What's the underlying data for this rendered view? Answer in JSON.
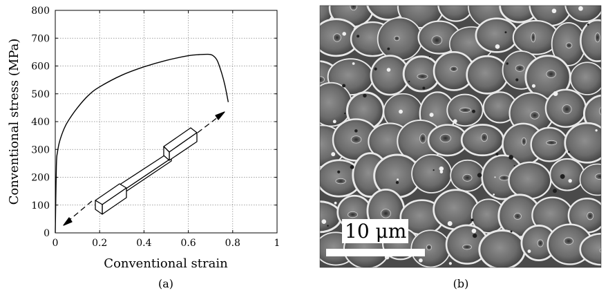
{
  "chart_data": {
    "type": "line",
    "title": "",
    "xlabel": "Conventional strain",
    "ylabel": "Conventional stress (MPa)",
    "xlim": [
      0,
      1
    ],
    "ylim": [
      0,
      800
    ],
    "xticks": [
      0,
      0.2,
      0.4,
      0.6,
      0.8,
      1
    ],
    "xtick_labels": [
      "0",
      "0.2",
      "0.4",
      "0.6",
      "0.8",
      "1"
    ],
    "yticks": [
      0,
      100,
      200,
      300,
      400,
      500,
      600,
      700,
      800
    ],
    "ytick_labels": [
      "0",
      "100",
      "200",
      "300",
      "400",
      "500",
      "600",
      "700",
      "800"
    ],
    "grid": true,
    "series": [
      {
        "x": [
          0,
          0.005,
          0.01,
          0.02,
          0.04,
          0.06,
          0.1,
          0.15,
          0.2,
          0.3,
          0.4,
          0.5,
          0.6,
          0.65,
          0.69,
          0.71,
          0.73,
          0.75,
          0.765,
          0.78
        ],
        "y": [
          0,
          240,
          290,
          330,
          375,
          405,
          450,
          495,
          525,
          567,
          597,
          620,
          637,
          641,
          642,
          638,
          620,
          575,
          530,
          470
        ]
      }
    ]
  },
  "panels": {
    "a_label": "(a)",
    "b_label": "(b)",
    "scale_bar": "10 μm"
  },
  "colors": {
    "line": "#000000",
    "grid": "#808080"
  },
  "icons": {
    "specimen": "tensile-specimen-icon",
    "micrograph": "fracture-surface-micrograph"
  }
}
